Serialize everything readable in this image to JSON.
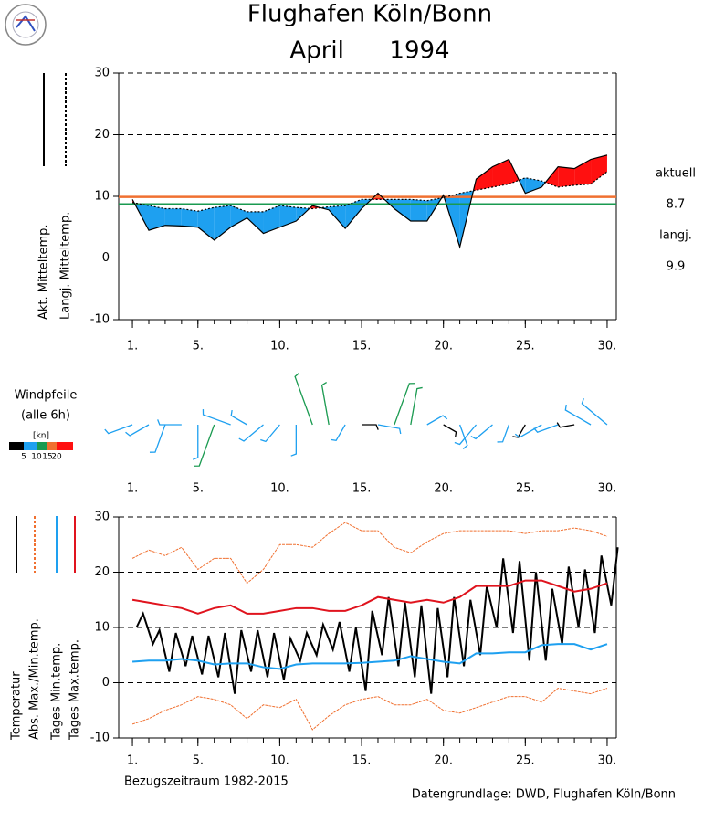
{
  "chart_data": [
    {
      "type": "area-diff",
      "title": "Flughafen Köln/Bonn",
      "subtitle": "April      1994",
      "x": [
        1,
        2,
        3,
        4,
        5,
        6,
        7,
        8,
        9,
        10,
        11,
        12,
        13,
        14,
        15,
        16,
        17,
        18,
        19,
        20,
        21,
        22,
        23,
        24,
        25,
        26,
        27,
        28,
        29,
        30
      ],
      "series": [
        {
          "name": "Akt. Mitteltemp.",
          "color": "#000000",
          "values": [
            9.5,
            4.5,
            5.3,
            5.2,
            5.0,
            2.9,
            5.0,
            6.5,
            4.0,
            5.0,
            6.0,
            8.5,
            7.8,
            4.8,
            8.0,
            10.5,
            8.0,
            6.0,
            6.0,
            10.2,
            1.8,
            12.8,
            14.8,
            16.0,
            10.5,
            11.5,
            14.8,
            14.5,
            16.0,
            16.7
          ]
        },
        {
          "name": "Langj. Mitteltemp.",
          "color": "#000000",
          "dashed": true,
          "values": [
            9.0,
            8.5,
            8.0,
            8.0,
            7.6,
            8.2,
            8.5,
            7.5,
            7.5,
            8.5,
            8.2,
            8.0,
            8.3,
            8.5,
            9.5,
            9.5,
            9.5,
            9.5,
            9.3,
            9.8,
            10.5,
            11.0,
            11.5,
            12.0,
            13.0,
            12.5,
            11.5,
            11.8,
            12.0,
            14.0
          ]
        }
      ],
      "above_color": "#ff1010",
      "below_color": "#1ea0f0",
      "hlines": [
        {
          "name": "aktuell",
          "value": 8.7,
          "color": "#1a9a50"
        },
        {
          "name": "langj.",
          "value": 9.9,
          "color": "#f07030"
        }
      ],
      "xlim": [
        0.16,
        30.56
      ],
      "xticks": [
        {
          "value": 1,
          "label": "1."
        },
        {
          "value": 5,
          "label": "5."
        },
        {
          "value": 10,
          "label": "10."
        },
        {
          "value": 15,
          "label": "15."
        },
        {
          "value": 20,
          "label": "20."
        },
        {
          "value": 25,
          "label": "25."
        },
        {
          "value": 30,
          "label": "30."
        }
      ],
      "ylim": [
        -10,
        30
      ],
      "yticks": [
        -10,
        0,
        10,
        20,
        30
      ],
      "grid": true
    },
    {
      "type": "wind",
      "title": "Windpfeile",
      "subtitle": "(alle 6h)",
      "unit_label": "[kn]",
      "x": [
        1,
        2,
        3,
        4,
        5,
        6,
        7,
        8,
        9,
        10,
        11,
        12,
        13,
        14,
        15,
        16,
        17,
        18,
        19,
        20,
        21,
        22,
        23,
        24,
        25,
        26,
        27,
        28,
        29,
        30
      ],
      "speed": [
        7,
        6,
        8,
        6,
        9,
        12,
        8,
        5,
        7,
        6,
        8,
        14,
        11,
        5,
        4,
        6,
        12,
        10,
        5,
        4,
        6,
        7,
        6,
        5,
        4,
        7,
        6,
        4,
        8,
        9
      ],
      "direction": [
        250,
        240,
        200,
        270,
        180,
        200,
        290,
        300,
        230,
        220,
        180,
        340,
        350,
        210,
        90,
        100,
        20,
        10,
        60,
        120,
        160,
        220,
        230,
        200,
        210,
        240,
        250,
        260,
        300,
        310
      ],
      "speed_classes": [
        5,
        10,
        15,
        20
      ],
      "class_colors": [
        "#000000",
        "#1ea0f0",
        "#1a9a50",
        "#f07030",
        "#ff1010"
      ],
      "xlim": [
        0.16,
        30.56
      ],
      "xticks": [
        {
          "value": 1,
          "label": "1."
        },
        {
          "value": 5,
          "label": "5."
        },
        {
          "value": 10,
          "label": "10."
        },
        {
          "value": 15,
          "label": "15."
        },
        {
          "value": 20,
          "label": "20."
        },
        {
          "value": 25,
          "label": "25."
        },
        {
          "value": 30,
          "label": "30."
        }
      ]
    },
    {
      "type": "line",
      "x": [
        1,
        2,
        3,
        4,
        5,
        6,
        7,
        8,
        9,
        10,
        11,
        12,
        13,
        14,
        15,
        16,
        17,
        18,
        19,
        20,
        21,
        22,
        23,
        24,
        25,
        26,
        27,
        28,
        29,
        30
      ],
      "series": [
        {
          "name": "Temperatur",
          "color": "#000000",
          "x": [
            1.25,
            1.65,
            2.25,
            2.65,
            3.25,
            3.65,
            4.25,
            4.65,
            5.25,
            5.65,
            6.25,
            6.65,
            7.25,
            7.65,
            8.25,
            8.65,
            9.25,
            9.65,
            10.25,
            10.65,
            11.25,
            11.65,
            12.25,
            12.65,
            13.25,
            13.65,
            14.25,
            14.65,
            15.25,
            15.65,
            16.25,
            16.65,
            17.25,
            17.65,
            18.25,
            18.65,
            19.25,
            19.65,
            20.25,
            20.65,
            21.25,
            21.65,
            22.25,
            22.65,
            23.25,
            23.65,
            24.25,
            24.65,
            25.25,
            25.65,
            26.25,
            26.65,
            27.25,
            27.65,
            28.25,
            28.65,
            29.25,
            29.65,
            30.25,
            30.65
          ],
          "values": [
            10,
            12.5,
            7,
            9.5,
            2,
            9,
            3,
            8.5,
            1.5,
            8.5,
            1,
            9,
            -2,
            9.5,
            2,
            9.5,
            1,
            9,
            0.5,
            8,
            4,
            9,
            5,
            10.5,
            6,
            11,
            2,
            10,
            -1.5,
            13,
            5,
            15.5,
            3,
            14.5,
            1,
            14,
            -2,
            13.5,
            1,
            15.5,
            3,
            15,
            5,
            17.5,
            10,
            22.5,
            9,
            22,
            4,
            20,
            4,
            17,
            7,
            21,
            10,
            20.5,
            9,
            23,
            14,
            24.5
          ]
        },
        {
          "name": "Abs. Max./Min.temp.",
          "color": "#f07030",
          "dashed": true,
          "values": [
            22.5,
            24,
            23,
            24.5,
            20.5,
            22.5,
            22.5,
            18,
            20.5,
            25,
            25,
            24.5,
            27,
            29,
            27.5,
            27.5,
            24.5,
            23.5,
            25.5,
            27,
            27.5,
            27.5,
            27.5,
            27.5,
            27,
            27.5,
            27.5,
            28,
            27.5,
            26.5
          ],
          "values_min": [
            -7.5,
            -6.5,
            -5,
            -4,
            -2.5,
            -3,
            -4,
            -6.5,
            -4,
            -4.5,
            -3,
            -8.5,
            -6,
            -4,
            -3,
            -2.5,
            -4,
            -4,
            -3,
            -5,
            -5.5,
            -4.5,
            -3.5,
            -2.5,
            -2.5,
            -3.5,
            -1,
            -1.5,
            -2,
            -1
          ]
        },
        {
          "name": "Tages Min.temp.",
          "color": "#1ea0f0",
          "values": [
            3.8,
            4,
            4,
            4.3,
            4,
            3.3,
            3.5,
            3.5,
            2.8,
            2.5,
            3.3,
            3.5,
            3.5,
            3.5,
            3.6,
            3.8,
            4,
            4.8,
            4.3,
            3.8,
            3.5,
            5.3,
            5.3,
            5.5,
            5.5,
            6.8,
            7,
            7,
            6,
            7
          ]
        },
        {
          "name": "Tages Max.temp.",
          "color": "#e0141e",
          "values": [
            15,
            14.5,
            14,
            13.5,
            12.5,
            13.5,
            14,
            12.5,
            12.5,
            13,
            13.5,
            13.5,
            13,
            13,
            14,
            15.5,
            15,
            14.5,
            15,
            14.5,
            15.5,
            17.5,
            17.5,
            17.5,
            18.5,
            18.5,
            17.5,
            16.5,
            17,
            18
          ]
        }
      ],
      "reference_period": "Bezugszeitraum 1982-2015",
      "source": "Datengrundlage: DWD, Flughafen Köln/Bonn",
      "xlim": [
        0.16,
        30.56
      ],
      "xticks": [
        {
          "value": 1,
          "label": "1."
        },
        {
          "value": 5,
          "label": "5."
        },
        {
          "value": 10,
          "label": "10."
        },
        {
          "value": 15,
          "label": "15."
        },
        {
          "value": 20,
          "label": "20."
        },
        {
          "value": 25,
          "label": "25."
        },
        {
          "value": 30,
          "label": "30."
        }
      ],
      "ylim": [
        -10,
        30
      ],
      "yticks": [
        -10,
        0,
        10,
        20,
        30
      ],
      "grid": true
    }
  ]
}
